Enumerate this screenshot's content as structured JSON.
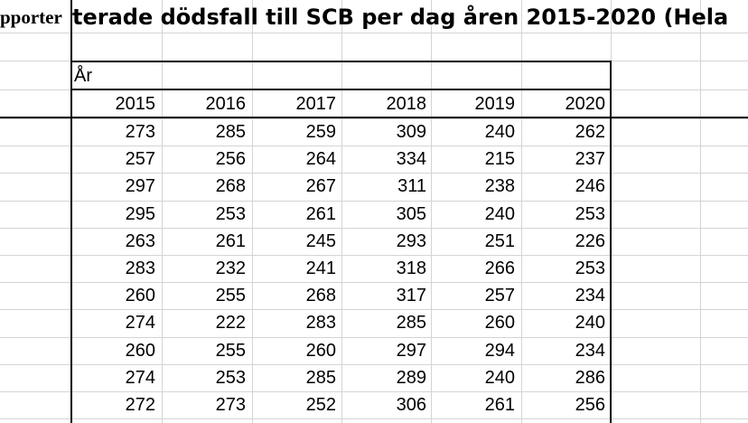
{
  "sheet": {
    "title_fragment_left": "pporter",
    "title_main": "terade dödsfall till SCB per dag åren 2015-2020 (Hela",
    "year_group_label": "År",
    "years": [
      "2015",
      "2016",
      "2017",
      "2018",
      "2019",
      "2020"
    ],
    "rows": [
      [
        "273",
        "285",
        "259",
        "309",
        "240",
        "262"
      ],
      [
        "257",
        "256",
        "264",
        "334",
        "215",
        "237"
      ],
      [
        "297",
        "268",
        "267",
        "311",
        "238",
        "246"
      ],
      [
        "295",
        "253",
        "261",
        "305",
        "240",
        "253"
      ],
      [
        "263",
        "261",
        "245",
        "293",
        "251",
        "226"
      ],
      [
        "283",
        "232",
        "241",
        "318",
        "266",
        "253"
      ],
      [
        "260",
        "255",
        "268",
        "317",
        "257",
        "234"
      ],
      [
        "274",
        "222",
        "283",
        "285",
        "260",
        "240"
      ],
      [
        "260",
        "255",
        "260",
        "297",
        "294",
        "234"
      ],
      [
        "274",
        "253",
        "285",
        "289",
        "240",
        "286"
      ],
      [
        "272",
        "273",
        "252",
        "306",
        "261",
        "256"
      ]
    ]
  }
}
